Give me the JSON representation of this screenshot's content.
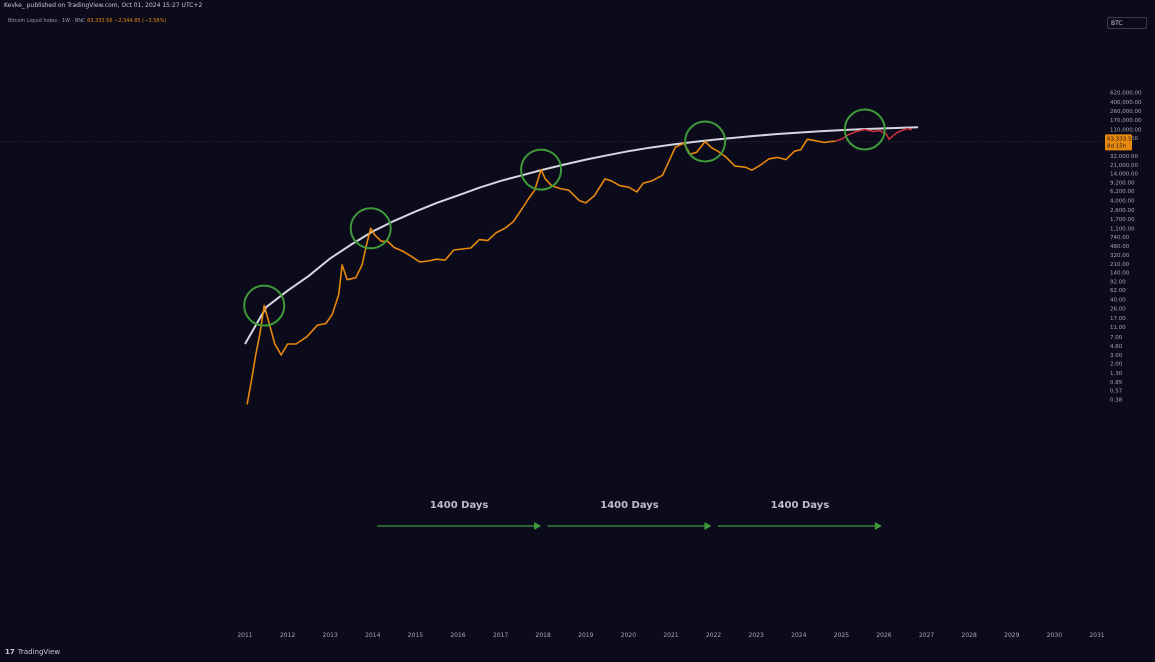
{
  "header": {
    "publisher": "Kevke_ published on TradingView.com, Oct 01, 2024 15:27 UTC+2",
    "symbol_label": "Bitcoin Liquid Index · 1W · BNC",
    "symbol_price": "63,333.56 −2,344.85 (−3.58%)",
    "currency": "BTC"
  },
  "footer": {
    "brand": "TradingView",
    "brand_mark": "17"
  },
  "colors": {
    "background": "#0b0b1c",
    "price_line": "#e8880d",
    "projection_line": "#c8303a",
    "curve": "#d6d6de",
    "circles": "#3f9a3a",
    "arrows": "#3f9a3a"
  },
  "chart_data": {
    "type": "line",
    "title": "",
    "xlabel": "",
    "ylabel": "",
    "y_scale": "log",
    "x_ticks": [
      "2011",
      "2012",
      "2013",
      "2014",
      "2015",
      "2016",
      "2017",
      "2018",
      "2019",
      "2020",
      "2021",
      "2022",
      "2023",
      "2024",
      "2025",
      "2026",
      "2027",
      "2028",
      "2029",
      "2030",
      "2031"
    ],
    "y_ticks": [
      "620,000.00",
      "400,000.00",
      "260,000.00",
      "170,000.00",
      "110,000.00",
      "74,000.00",
      "32,000.00",
      "21,000.00",
      "14,000.00",
      "9,200.00",
      "6,200.00",
      "4,000.00",
      "2,600.00",
      "1,700.00",
      "1,100.00",
      "740.00",
      "480.00",
      "320.00",
      "210.00",
      "140.00",
      "92.00",
      "62.00",
      "40.00",
      "26.00",
      "17.00",
      "11.00",
      "7.00",
      "4.60",
      "3.00",
      "2.00",
      "1.30",
      "0.85",
      "0.57",
      "0.38"
    ],
    "price_tag": "63,333.56",
    "price_tag_sub": "8d 15h",
    "series": [
      {
        "points": [
          [
            2011.05,
            0.3
          ],
          [
            2011.15,
            0.9
          ],
          [
            2011.25,
            3
          ],
          [
            2011.35,
            8
          ],
          [
            2011.45,
            30
          ],
          [
            2011.55,
            15
          ],
          [
            2011.7,
            5
          ],
          [
            2011.85,
            3
          ],
          [
            2012.0,
            5
          ],
          [
            2012.2,
            5
          ],
          [
            2012.45,
            7
          ],
          [
            2012.7,
            12
          ],
          [
            2012.9,
            13
          ],
          [
            2013.05,
            20
          ],
          [
            2013.2,
            50
          ],
          [
            2013.28,
            200
          ],
          [
            2013.4,
            100
          ],
          [
            2013.6,
            110
          ],
          [
            2013.75,
            200
          ],
          [
            2013.85,
            500
          ],
          [
            2013.95,
            1100
          ],
          [
            2014.05,
            800
          ],
          [
            2014.2,
            600
          ],
          [
            2014.35,
            600
          ],
          [
            2014.5,
            450
          ],
          [
            2014.7,
            380
          ],
          [
            2014.9,
            300
          ],
          [
            2015.1,
            230
          ],
          [
            2015.3,
            240
          ],
          [
            2015.5,
            260
          ],
          [
            2015.7,
            250
          ],
          [
            2015.9,
            400
          ],
          [
            2016.1,
            420
          ],
          [
            2016.3,
            440
          ],
          [
            2016.5,
            650
          ],
          [
            2016.7,
            620
          ],
          [
            2016.9,
            900
          ],
          [
            2017.1,
            1100
          ],
          [
            2017.3,
            1500
          ],
          [
            2017.5,
            2700
          ],
          [
            2017.65,
            4300
          ],
          [
            2017.8,
            6500
          ],
          [
            2017.95,
            17000
          ],
          [
            2018.05,
            11000
          ],
          [
            2018.2,
            8000
          ],
          [
            2018.4,
            7000
          ],
          [
            2018.6,
            6500
          ],
          [
            2018.85,
            4000
          ],
          [
            2019.0,
            3600
          ],
          [
            2019.2,
            5000
          ],
          [
            2019.45,
            11000
          ],
          [
            2019.6,
            10000
          ],
          [
            2019.8,
            8000
          ],
          [
            2020.0,
            7500
          ],
          [
            2020.2,
            6000
          ],
          [
            2020.35,
            9000
          ],
          [
            2020.55,
            10000
          ],
          [
            2020.8,
            13000
          ],
          [
            2020.95,
            25000
          ],
          [
            2021.1,
            48000
          ],
          [
            2021.3,
            58000
          ],
          [
            2021.45,
            35000
          ],
          [
            2021.6,
            38000
          ],
          [
            2021.8,
            63000
          ],
          [
            2021.95,
            47000
          ],
          [
            2022.1,
            40000
          ],
          [
            2022.3,
            30000
          ],
          [
            2022.5,
            20000
          ],
          [
            2022.75,
            19000
          ],
          [
            2022.9,
            16500
          ],
          [
            2023.1,
            21000
          ],
          [
            2023.3,
            28000
          ],
          [
            2023.5,
            30000
          ],
          [
            2023.7,
            27000
          ],
          [
            2023.9,
            40000
          ],
          [
            2024.05,
            43000
          ],
          [
            2024.2,
            70000
          ],
          [
            2024.4,
            65000
          ],
          [
            2024.6,
            60000
          ],
          [
            2024.75,
            63000
          ],
          [
            2024.85,
            63333
          ]
        ]
      },
      {
        "points": [
          [
            2024.85,
            63333
          ],
          [
            2025.0,
            70000
          ],
          [
            2025.15,
            85000
          ],
          [
            2025.35,
            100000
          ],
          [
            2025.55,
            110000
          ],
          [
            2025.75,
            100000
          ],
          [
            2025.9,
            105000
          ],
          [
            2026.05,
            90000
          ],
          [
            2026.12,
            70000
          ],
          [
            2026.3,
            95000
          ],
          [
            2026.55,
            115000
          ],
          [
            2026.65,
            108000
          ]
        ]
      }
    ],
    "curve": [
      [
        2011.0,
        5
      ],
      [
        2011.5,
        28
      ],
      [
        2012.0,
        60
      ],
      [
        2012.5,
        120
      ],
      [
        2013.0,
        270
      ],
      [
        2013.5,
        520
      ],
      [
        2014.0,
        950
      ],
      [
        2014.5,
        1550
      ],
      [
        2015.0,
        2400
      ],
      [
        2015.5,
        3600
      ],
      [
        2016.0,
        5100
      ],
      [
        2016.5,
        7300
      ],
      [
        2017.0,
        10000
      ],
      [
        2017.5,
        13000
      ],
      [
        2018.0,
        17000
      ],
      [
        2018.5,
        21500
      ],
      [
        2019.0,
        27000
      ],
      [
        2019.5,
        33000
      ],
      [
        2020.0,
        40000
      ],
      [
        2020.5,
        47000
      ],
      [
        2021.0,
        54000
      ],
      [
        2021.5,
        61000
      ],
      [
        2022.0,
        68000
      ],
      [
        2022.5,
        75000
      ],
      [
        2023.0,
        82000
      ],
      [
        2023.5,
        89000
      ],
      [
        2024.0,
        95000
      ],
      [
        2024.5,
        101000
      ],
      [
        2025.0,
        107000
      ],
      [
        2025.5,
        112000
      ],
      [
        2026.0,
        116000
      ],
      [
        2026.5,
        120000
      ],
      [
        2026.8,
        122000
      ]
    ],
    "cycle_tops": [
      [
        2011.45,
        30
      ],
      [
        2013.95,
        1100
      ],
      [
        2017.95,
        17000
      ],
      [
        2021.8,
        63000
      ],
      [
        2025.55,
        110000
      ]
    ],
    "annotations": [
      {
        "text": "1400 Days",
        "x_start": 2014.1,
        "x_end": 2017.95
      },
      {
        "text": "1400 Days",
        "x_start": 2018.1,
        "x_end": 2021.95
      },
      {
        "text": "1400 Days",
        "x_start": 2022.1,
        "x_end": 2025.95
      }
    ]
  }
}
